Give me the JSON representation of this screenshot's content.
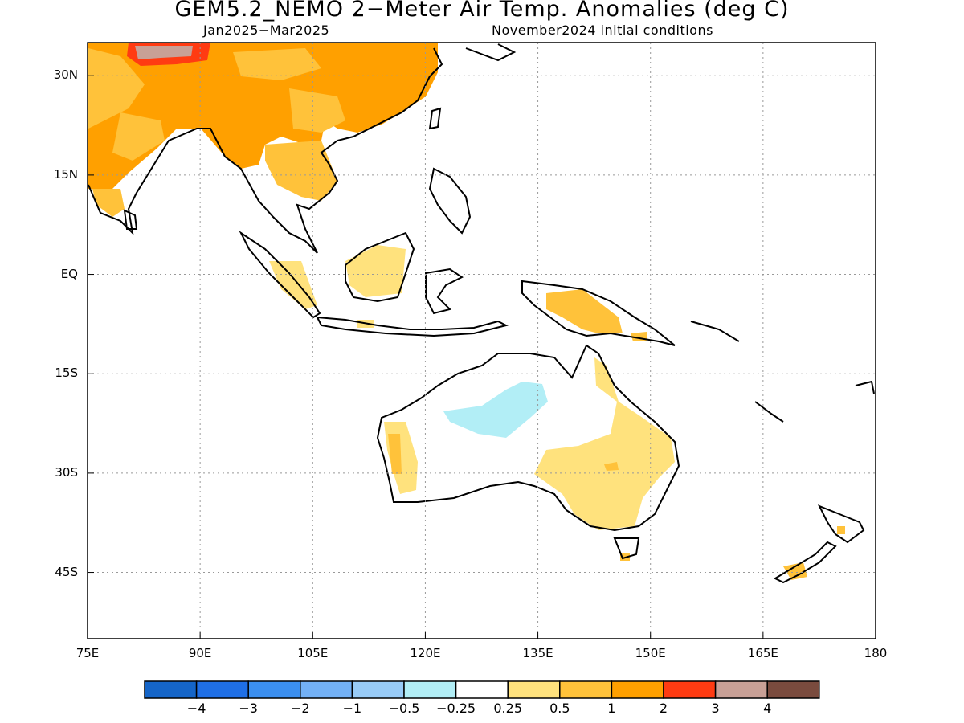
{
  "title": "GEM5.2_NEMO 2−Meter Air Temp. Anomalies (deg C)",
  "subtitle_period": "Jan2025−Mar2025",
  "subtitle_init": "November2024 initial conditions",
  "lat_labels": [
    "30N",
    "15N",
    "EQ",
    "15S",
    "30S",
    "45S"
  ],
  "lat_values": [
    30,
    15,
    0,
    -15,
    -30,
    -45
  ],
  "lon_labels": [
    "75E",
    "90E",
    "105E",
    "120E",
    "135E",
    "150E",
    "165E",
    "180"
  ],
  "lon_values": [
    75,
    90,
    105,
    120,
    135,
    150,
    165,
    180
  ],
  "extent": {
    "lon_min": 75,
    "lon_max": 180,
    "lat_min": -55,
    "lat_max": 35
  },
  "colorbar": {
    "colors": [
      "#1565c8",
      "#1f6fe6",
      "#3b8ff0",
      "#73b1f6",
      "#98cbf7",
      "#b2eef6",
      "#ffffff",
      "#ffe27d",
      "#ffc23a",
      "#ffa000",
      "#ff3b12",
      "#c8a096",
      "#7a4b3e"
    ],
    "labels": [
      "−4",
      "−3",
      "−2",
      "−1",
      "−0.5",
      "−0.25",
      "0.25",
      "0.5",
      "1",
      "2",
      "3",
      "4"
    ]
  },
  "anomaly_regions": [
    {
      "region": "South/East Asia",
      "color": "#ffa000"
    },
    {
      "region": "Tibetan Plateau",
      "color": "#c8a096"
    },
    {
      "region": "Northern Australia interior",
      "color": "#b2eef6"
    },
    {
      "region": "Eastern Australia",
      "color": "#ffe27d"
    },
    {
      "region": "Western Australia coast",
      "color": "#ffe27d"
    },
    {
      "region": "New Guinea",
      "color": "#ffc23a"
    }
  ]
}
